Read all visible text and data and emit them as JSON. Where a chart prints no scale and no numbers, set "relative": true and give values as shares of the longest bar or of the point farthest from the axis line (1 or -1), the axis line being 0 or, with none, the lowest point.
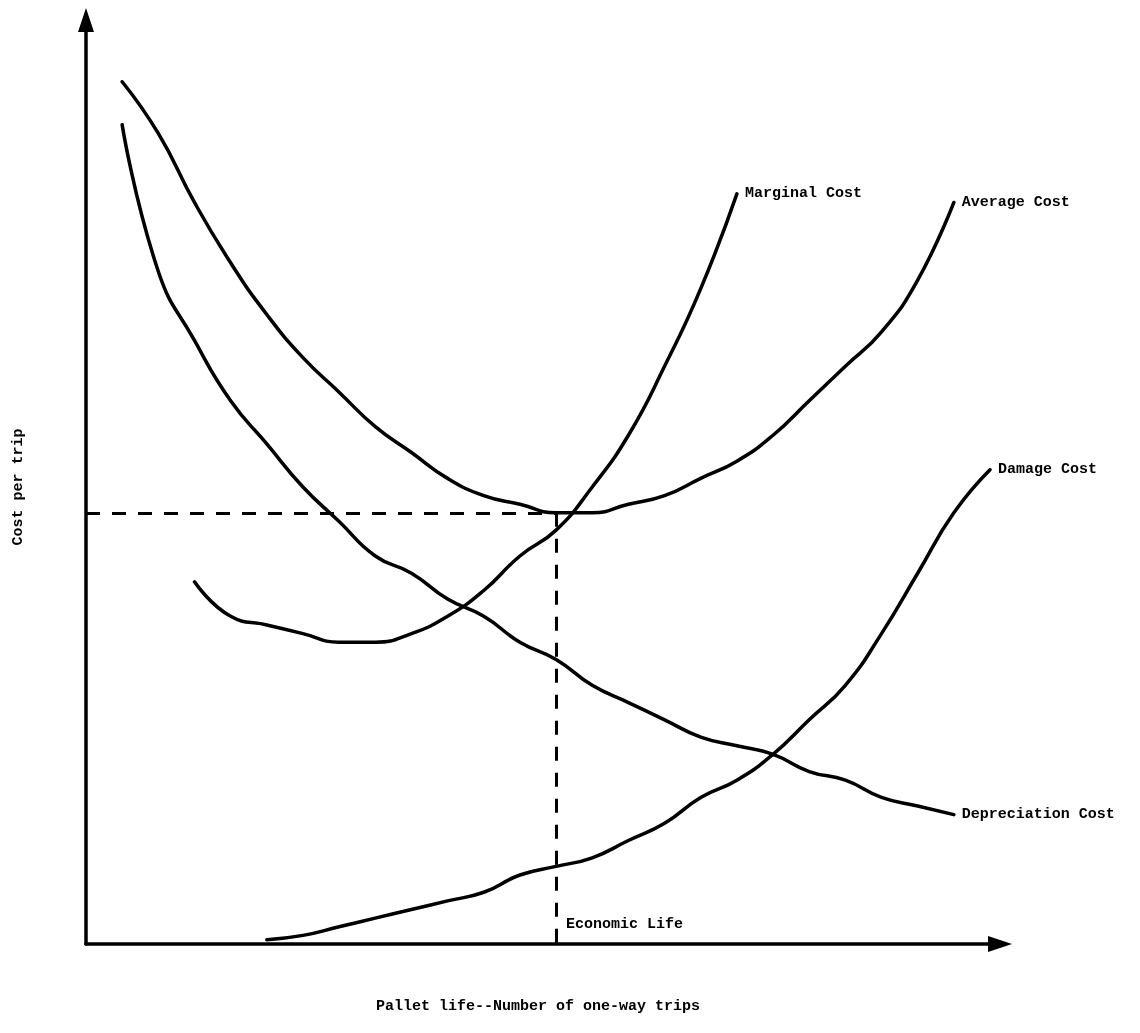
{
  "chart_data": {
    "type": "line",
    "relative": true,
    "xlabel": "Pallet life--Number of one-way trips",
    "ylabel": "Cost per trip",
    "legend": false,
    "grid": false,
    "marker": "none",
    "line_style": "solid",
    "categories": [
      null,
      null,
      null,
      null,
      null,
      null,
      null,
      null,
      null,
      null,
      null,
      null,
      null,
      null,
      null,
      null,
      null,
      null,
      null,
      null,
      null,
      null,
      null,
      null,
      null,
      null
    ],
    "series": [
      {
        "name": "Marginal Cost",
        "color": "#000000",
        "values": [
          null,
          null,
          null,
          0.42,
          0.38,
          0.37,
          0.36,
          0.35,
          0.35,
          0.36,
          0.38,
          0.41,
          0.45,
          0.48,
          0.53,
          0.59,
          0.67,
          0.76,
          0.87,
          null,
          null,
          null,
          null,
          null,
          null,
          null
        ]
      },
      {
        "name": "Average Cost",
        "color": "#000000",
        "values": [
          null,
          1,
          0.94,
          0.86,
          0.79,
          0.73,
          0.68,
          0.64,
          0.6,
          0.57,
          0.54,
          0.52,
          0.51,
          0.5,
          0.5,
          0.51,
          0.52,
          0.54,
          0.56,
          0.59,
          0.63,
          0.67,
          0.71,
          0.77,
          0.86,
          null
        ]
      },
      {
        "name": "Damage Cost",
        "color": "#000000",
        "values": [
          null,
          null,
          null,
          null,
          null,
          0.005,
          0.01,
          0.02,
          0.03,
          0.04,
          0.05,
          0.06,
          0.08,
          0.09,
          0.1,
          0.12,
          0.14,
          0.17,
          0.19,
          0.22,
          0.26,
          0.3,
          0.36,
          0.43,
          0.5,
          0.55
        ]
      },
      {
        "name": "Depreciation Cost",
        "color": "#000000",
        "values": [
          null,
          0.95,
          0.78,
          0.7,
          0.63,
          0.58,
          0.53,
          0.49,
          0.45,
          0.43,
          0.4,
          0.38,
          0.35,
          0.33,
          0.3,
          0.28,
          0.26,
          0.24,
          0.23,
          0.22,
          0.2,
          0.19,
          0.17,
          0.16,
          0.15,
          null
        ]
      }
    ],
    "annotations": [
      "Economic Life"
    ],
    "ref_lines": [
      {
        "axis": "y",
        "value": 0.5,
        "line_style": "dashed",
        "color": "#000000"
      }
    ]
  }
}
